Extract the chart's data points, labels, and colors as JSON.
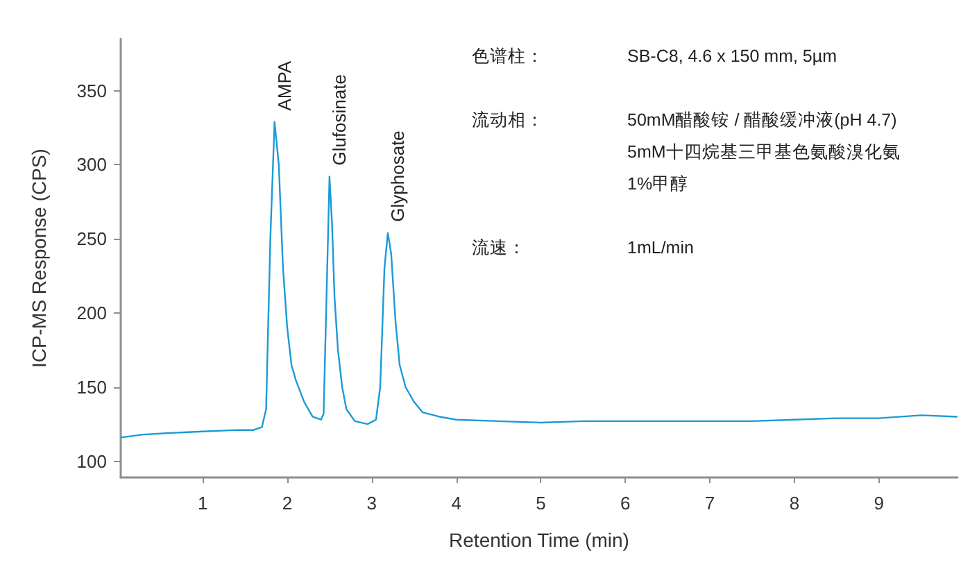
{
  "chart_data": {
    "type": "line",
    "xlabel": "Retention Time (min)",
    "ylabel": "ICP-MS Response (CPS)",
    "xlim": [
      0.03,
      9.93
    ],
    "xticks": [
      1,
      2,
      3,
      4,
      5,
      6,
      7,
      8,
      9
    ],
    "ylim": [
      89,
      385
    ],
    "yticks": [
      100,
      150,
      200,
      250,
      300,
      350
    ],
    "grid": false,
    "marker": "none",
    "line_style": "solid",
    "series": [
      {
        "color": "#1a9bd7",
        "x": [
          0.03,
          0.3,
          0.6,
          1.0,
          1.4,
          1.6,
          1.7,
          1.75,
          1.8,
          1.85,
          1.9,
          1.95,
          2.0,
          2.05,
          2.1,
          2.2,
          2.3,
          2.4,
          2.43,
          2.46,
          2.5,
          2.53,
          2.56,
          2.6,
          2.65,
          2.7,
          2.8,
          2.95,
          3.05,
          3.1,
          3.15,
          3.19,
          3.23,
          3.28,
          3.33,
          3.4,
          3.5,
          3.6,
          3.8,
          4.0,
          4.5,
          5.0,
          5.5,
          6.0,
          6.5,
          7.0,
          7.5,
          8.0,
          8.5,
          9.0,
          9.5,
          9.93
        ],
        "values": [
          116,
          118,
          119,
          120,
          121,
          121,
          123,
          135,
          250,
          329,
          300,
          230,
          190,
          165,
          155,
          140,
          130,
          128,
          132,
          200,
          292,
          260,
          210,
          175,
          150,
          135,
          127,
          125,
          128,
          150,
          230,
          254,
          240,
          195,
          165,
          150,
          140,
          133,
          130,
          128,
          127,
          126,
          127,
          127,
          127,
          127,
          127,
          128,
          129,
          129,
          131,
          130
        ]
      }
    ],
    "annotations": [
      {
        "text": "AMPA",
        "x": 1.85,
        "y": 329
      },
      {
        "text": "Glufosinate",
        "x": 2.5,
        "y": 292
      },
      {
        "text": "Glyphosate",
        "x": 3.19,
        "y": 254
      },
      "色谱柱：",
      "SB-C8, 4.6 x 150 mm, 5µm",
      "流动相：",
      "50mM醋酸铵 / 醋酸缓冲液(pH 4.7)\n5mM十四烷基三甲基色氨酸溴化氨\n1%甲醇",
      "流速：",
      "1mL/min"
    ]
  }
}
